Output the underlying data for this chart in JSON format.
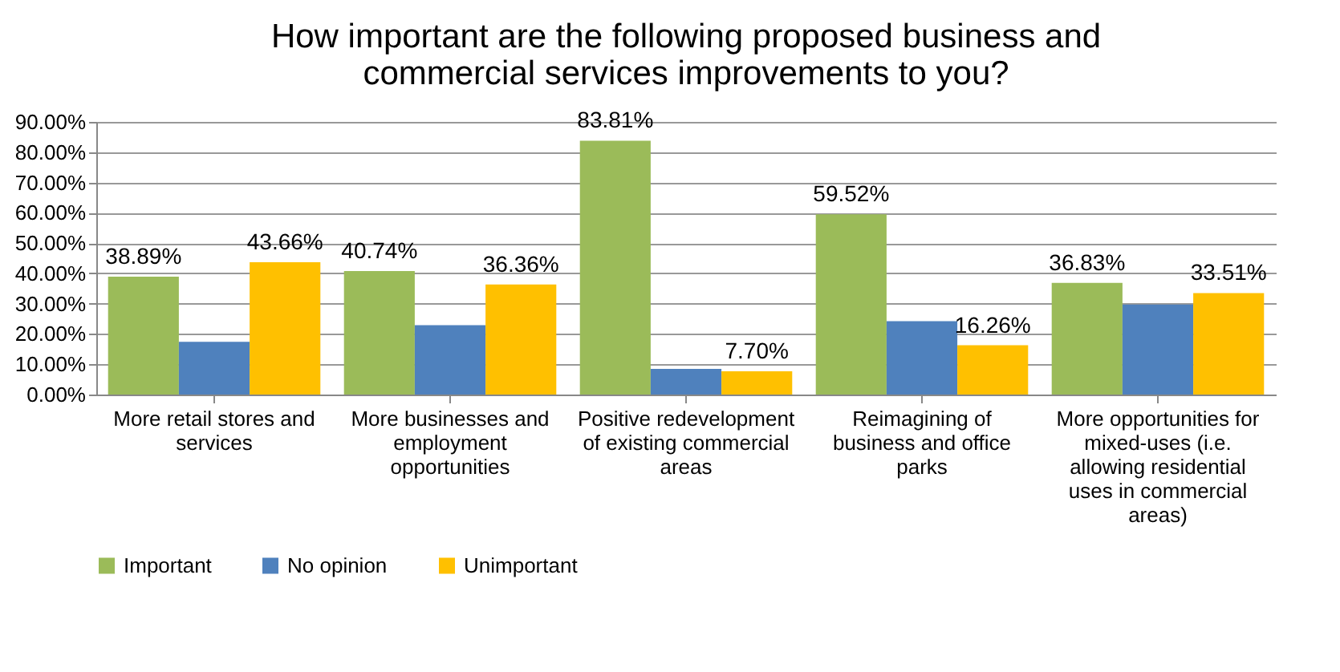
{
  "chart_data": {
    "type": "bar",
    "title": "How important are the following proposed business and commercial services improvements to you?",
    "categories": [
      "More retail stores and services",
      "More businesses and employment opportunities",
      "Positive redevelopment of existing commercial areas",
      "Reimagining of business and office parks",
      "More opportunities for mixed-uses (i.e. allowing residential uses in commercial areas)"
    ],
    "series": [
      {
        "name": "Important",
        "color": "#9bbb59",
        "values": [
          38.89,
          40.74,
          83.81,
          59.52,
          36.83
        ],
        "value_labels": [
          "38.89%",
          "40.74%",
          "83.81%",
          "59.52%",
          "36.83%"
        ]
      },
      {
        "name": "No opinion",
        "color": "#4f81bd",
        "values": [
          17.4,
          22.9,
          8.5,
          24.2,
          29.7
        ]
      },
      {
        "name": "Unimportant",
        "color": "#ffc000",
        "values": [
          43.66,
          36.36,
          7.7,
          16.26,
          33.51
        ],
        "value_labels": [
          "43.66%",
          "36.36%",
          "7.70%",
          "16.26%",
          "33.51%"
        ]
      }
    ],
    "ylim": [
      0,
      90
    ],
    "yticks": [
      {
        "value": 0,
        "label": "0.00%"
      },
      {
        "value": 10,
        "label": "10.00%"
      },
      {
        "value": 20,
        "label": "20.00%"
      },
      {
        "value": 30,
        "label": "30.00%"
      },
      {
        "value": 40,
        "label": "40.00%"
      },
      {
        "value": 50,
        "label": "50.00%"
      },
      {
        "value": 60,
        "label": "60.00%"
      },
      {
        "value": 70,
        "label": "70.00%"
      },
      {
        "value": 80,
        "label": "80.00%"
      },
      {
        "value": 90,
        "label": "90.00%"
      }
    ],
    "grid": "y",
    "legend": "bottom"
  }
}
